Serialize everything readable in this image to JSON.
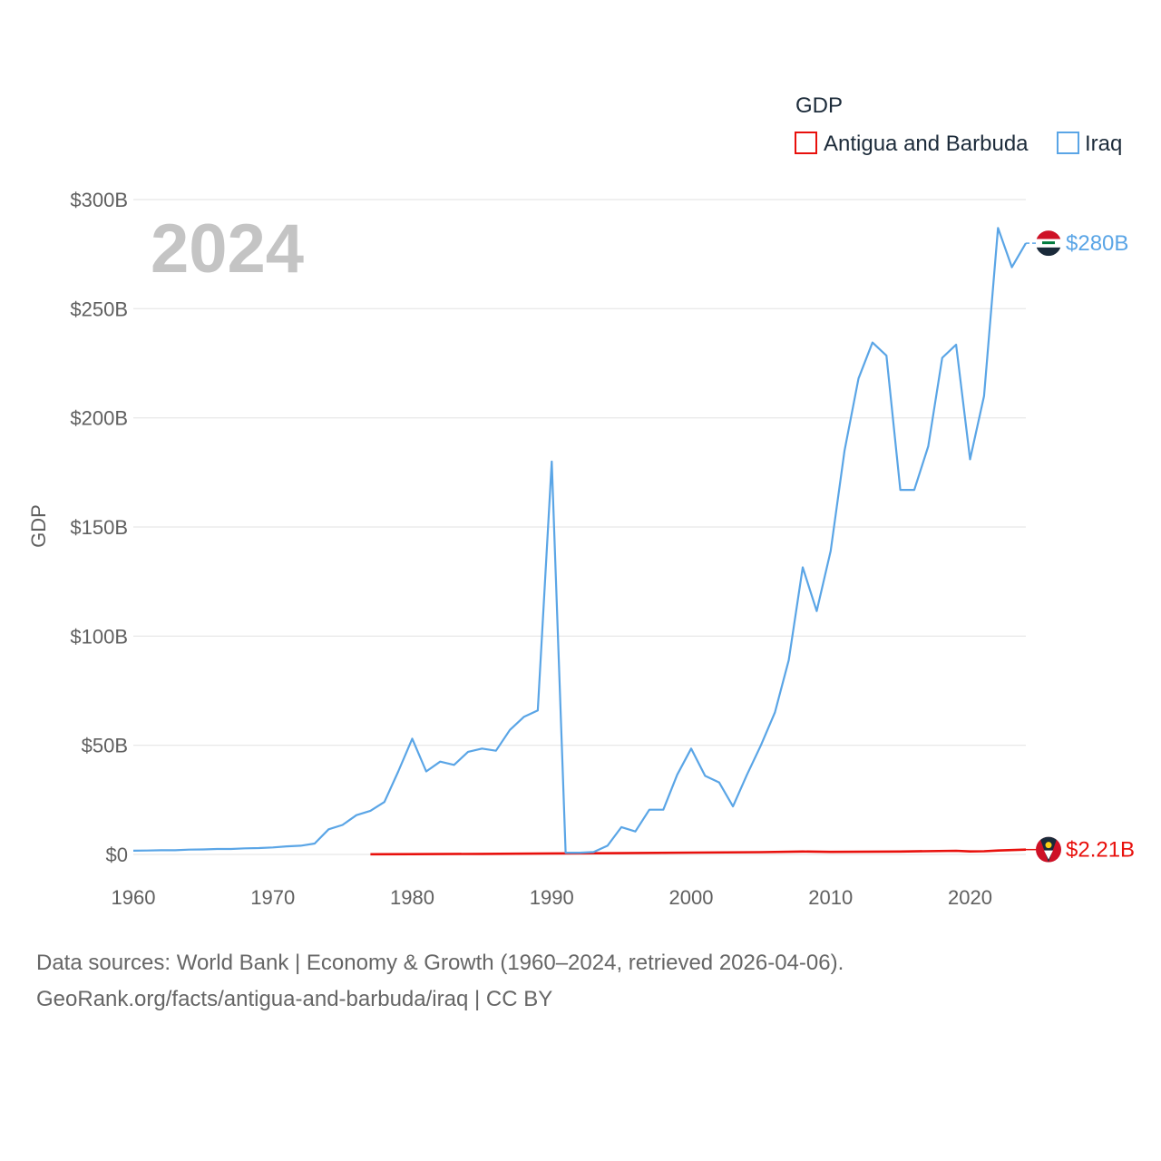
{
  "chart_data": {
    "type": "line",
    "title": "GDP",
    "ylabel": "GDP",
    "xlabel": "",
    "year_label": "2024",
    "xlim": [
      1960,
      2024
    ],
    "ylim": [
      0,
      300
    ],
    "x_ticks": [
      "1960",
      "1970",
      "1980",
      "1990",
      "2000",
      "2010",
      "2020"
    ],
    "y_ticks": [
      "$0",
      "$50B",
      "$100B",
      "$150B",
      "$200B",
      "$250B",
      "$300B"
    ],
    "grid": true,
    "legend_position": "top-right",
    "units": "billions USD",
    "series": [
      {
        "name": "Antigua and Barbuda",
        "color": "#e8100c",
        "end_label": "$2.21B",
        "flag_icon": "antigua-and-barbuda-flag-icon",
        "x": [
          1977,
          1980,
          1985,
          1990,
          1995,
          2000,
          2005,
          2008,
          2010,
          2015,
          2019,
          2020,
          2021,
          2022,
          2023,
          2024
        ],
        "values": [
          0.08,
          0.14,
          0.25,
          0.46,
          0.58,
          0.83,
          1.02,
          1.35,
          1.15,
          1.34,
          1.66,
          1.37,
          1.47,
          1.79,
          2.0,
          2.21
        ]
      },
      {
        "name": "Iraq",
        "color": "#5aa5e6",
        "end_label": "$280B",
        "flag_icon": "iraq-flag-icon",
        "x": [
          1960,
          1961,
          1962,
          1963,
          1964,
          1965,
          1966,
          1967,
          1968,
          1969,
          1970,
          1971,
          1972,
          1973,
          1974,
          1975,
          1976,
          1977,
          1978,
          1979,
          1980,
          1981,
          1982,
          1983,
          1984,
          1985,
          1986,
          1987,
          1988,
          1989,
          1990,
          1991,
          1992,
          1993,
          1994,
          1995,
          1996,
          1997,
          1998,
          1999,
          2000,
          2001,
          2002,
          2003,
          2004,
          2005,
          2006,
          2007,
          2008,
          2009,
          2010,
          2011,
          2012,
          2013,
          2014,
          2015,
          2016,
          2017,
          2018,
          2019,
          2020,
          2021,
          2022,
          2023,
          2024
        ],
        "values": [
          1.7,
          1.8,
          1.9,
          1.9,
          2.2,
          2.3,
          2.5,
          2.5,
          2.8,
          2.9,
          3.2,
          3.7,
          4.0,
          5.0,
          11.5,
          13.5,
          18.0,
          20.0,
          24.0,
          38.0,
          53.0,
          38.0,
          42.5,
          41.0,
          47.0,
          48.5,
          47.5,
          57.0,
          63.0,
          66.0,
          180.0,
          0.8,
          0.8,
          1.1,
          4.0,
          12.5,
          10.5,
          20.5,
          20.5,
          36.5,
          48.5,
          36.0,
          33.0,
          22.0,
          36.5,
          50.0,
          65.0,
          89.0,
          131.5,
          111.5,
          139.0,
          185.0,
          218.0,
          234.5,
          228.5,
          167.0,
          167.0,
          187.0,
          227.5,
          233.5,
          181.0,
          210.0,
          287.0,
          269.0,
          280.0
        ]
      }
    ]
  },
  "legend": {
    "title": "GDP",
    "items": [
      "Antigua and Barbuda",
      "Iraq"
    ]
  },
  "source": {
    "line1": "Data sources: World Bank | Economy & Growth (1960–2024, retrieved 2026-04-06).",
    "line2": "GeoRank.org/facts/antigua-and-barbuda/iraq | CC BY"
  }
}
